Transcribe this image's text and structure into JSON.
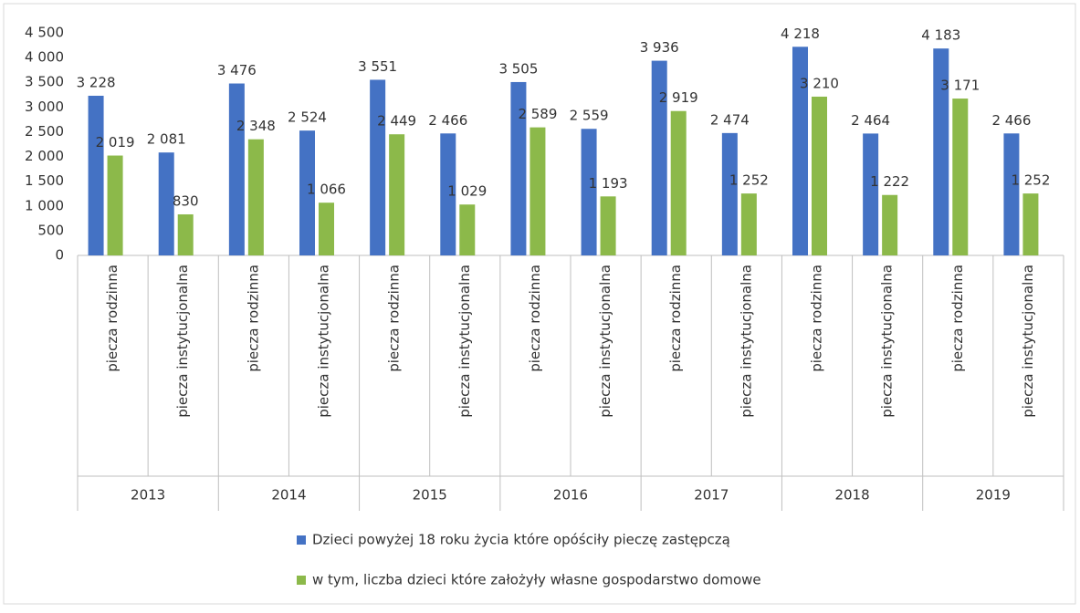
{
  "chart_data": {
    "type": "bar",
    "categories": [
      "piecza rodzinna",
      "piecza instytucjonalna",
      "piecza rodzinna",
      "piecza instytucjonalna",
      "piecza rodzinna",
      "piecza instytucjonalna",
      "piecza rodzinna",
      "piecza instytucjonalna",
      "piecza rodzinna",
      "piecza instytucjonalna",
      "piecza rodzinna",
      "piecza instytucjonalna",
      "piecza rodzinna",
      "piecza instytucjonalna"
    ],
    "groups": [
      "2013",
      "2014",
      "2015",
      "2016",
      "2017",
      "2018",
      "2019"
    ],
    "series": [
      {
        "name": "Dzieci powyżej 18 roku życia które opóściły pieczę zastępczą",
        "color": "#4472c4",
        "values": [
          3228,
          2081,
          3476,
          2524,
          3551,
          2466,
          3505,
          2559,
          3936,
          2474,
          4218,
          2464,
          4183,
          2466
        ],
        "value_labels": [
          "3 228",
          "2 081",
          "3 476",
          "2 524",
          "3 551",
          "2 466",
          "3 505",
          "2 559",
          "3 936",
          "2 474",
          "4 218",
          "2 464",
          "4 183",
          "2 466"
        ]
      },
      {
        "name": "w tym, liczba dzieci które założyły własne gospodarstwo domowe",
        "color": "#8cb94a",
        "values": [
          2019,
          830,
          2348,
          1066,
          2449,
          1029,
          2589,
          1193,
          2919,
          1252,
          3210,
          1222,
          3171,
          1252
        ],
        "value_labels": [
          "2 019",
          "830",
          "2 348",
          "1 066",
          "2 449",
          "1 029",
          "2 589",
          "1 193",
          "2 919",
          "1 252",
          "3 210",
          "1 222",
          "3 171",
          "1 252"
        ]
      }
    ],
    "ylim": [
      0,
      4500
    ],
    "yticks": [
      0,
      500,
      {
        "value": 1000,
        "label": "1 000"
      },
      {
        "value": 1500,
        "label": "1 500"
      },
      {
        "value": 2000,
        "label": "2 000"
      },
      {
        "value": 2500,
        "label": "2 500"
      },
      {
        "value": 3000,
        "label": "3 000"
      },
      {
        "value": 3500,
        "label": "3 500"
      },
      {
        "value": 4000,
        "label": "4 000"
      },
      {
        "value": 4500,
        "label": "4 500"
      }
    ],
    "legend": "bottom"
  }
}
